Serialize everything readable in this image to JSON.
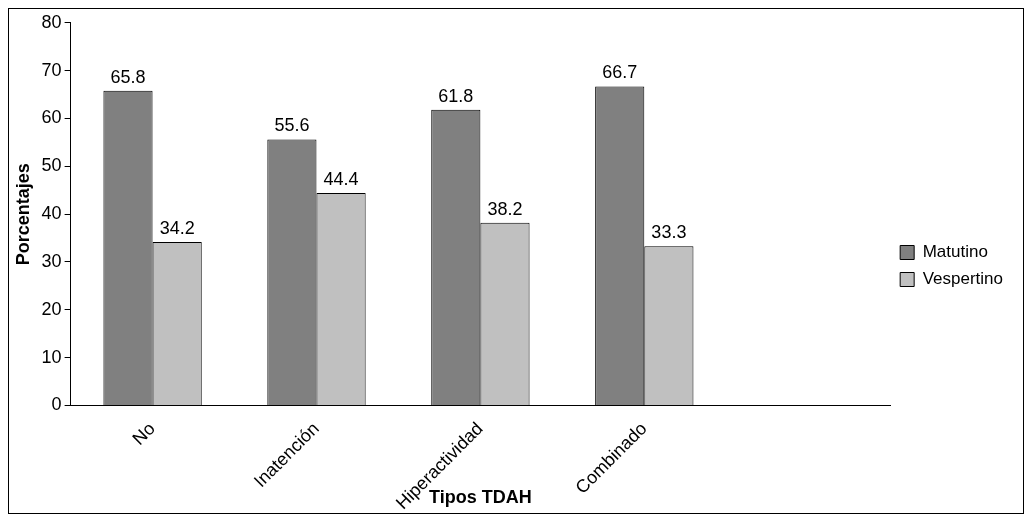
{
  "chart_data": {
    "type": "bar",
    "xlabel": "Tipos TDAH",
    "ylabel": "Porcentajes",
    "categories": [
      "No",
      "Inatención",
      "Hiperactividad",
      "Combinado",
      null
    ],
    "series": [
      {
        "name": "Matutino",
        "color": "#808080",
        "values": [
          65.8,
          55.6,
          61.8,
          66.7,
          null
        ]
      },
      {
        "name": "Vespertino",
        "color": "#c0c0c0",
        "values": [
          34.2,
          44.4,
          38.2,
          33.3,
          null
        ]
      }
    ],
    "ylim": [
      0,
      80
    ],
    "yticks": [
      0,
      10,
      20,
      30,
      40,
      50,
      60,
      70,
      80
    ],
    "grid": false,
    "legend": "right",
    "data_labels": true
  }
}
